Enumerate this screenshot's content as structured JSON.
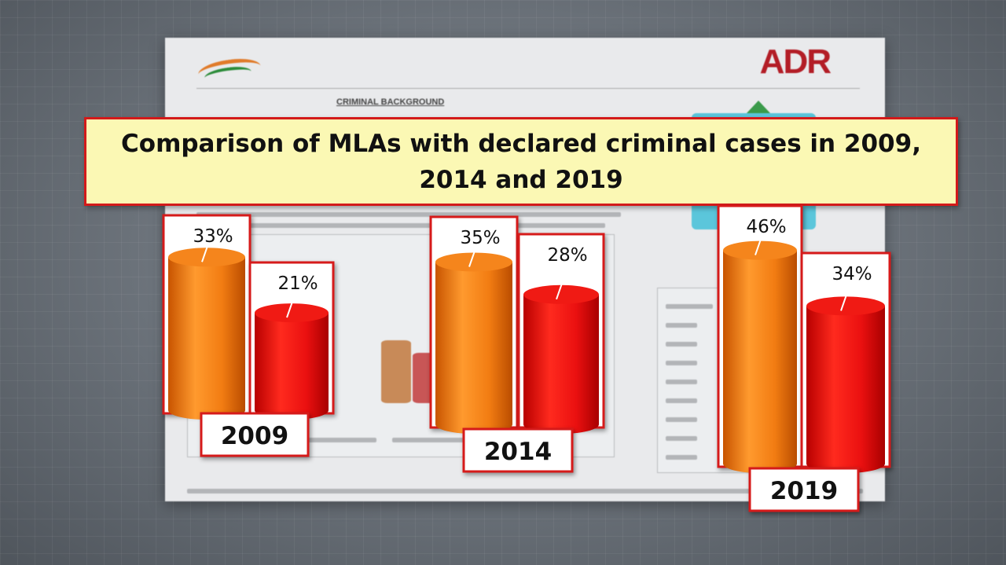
{
  "banner": {
    "title": "Comparison of MLAs with declared criminal cases in 2009, 2014 and 2019"
  },
  "background_document": {
    "logo_right": "ADR",
    "heading": "CRIMINAL BACKGROUND"
  },
  "colors": {
    "series_a": "#f07a10",
    "series_b": "#e61010",
    "label_border": "#d61a1a",
    "banner_fill": "#fbf8b4"
  },
  "chart_data": {
    "type": "bar",
    "title": "Comparison of MLAs with declared criminal cases in 2009, 2014 and 2019",
    "categories": [
      "2009",
      "2014",
      "2019"
    ],
    "series": [
      {
        "values": [
          33,
          35,
          46
        ],
        "labels": [
          "33%",
          "35%",
          "46%"
        ],
        "color": "#f07a10"
      },
      {
        "values": [
          21,
          28,
          34
        ],
        "labels": [
          "21%",
          "28%",
          "34%"
        ],
        "color": "#e61010"
      }
    ],
    "style": "3d-cylinder",
    "grid": false
  }
}
